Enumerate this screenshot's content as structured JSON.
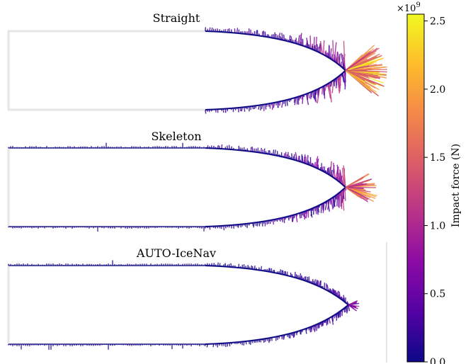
{
  "chart_data": {
    "type": "other",
    "panels": [
      {
        "title": "Straight",
        "max_force": 2.55,
        "bow_factor": 1.0
      },
      {
        "title": "Skeleton",
        "max_force": 2.1,
        "bow_factor": 0.7
      },
      {
        "title": "AUTO-IceNav",
        "max_force": 1.05,
        "bow_factor": 0.35
      }
    ],
    "colorbar": {
      "label": "Impact force (N)",
      "multiplier_base": "×10",
      "multiplier_exp": "9",
      "range": [
        0,
        2.55
      ],
      "colormap": "plasma",
      "ticks": [
        {
          "value": 0.0,
          "label": "0.0"
        },
        {
          "value": 0.5,
          "label": "0.5"
        },
        {
          "value": 1.0,
          "label": "1.0"
        },
        {
          "value": 1.5,
          "label": "1.5"
        },
        {
          "value": 2.0,
          "label": "2.0"
        },
        {
          "value": 2.5,
          "label": "2.5"
        }
      ]
    },
    "colors": {
      "hull_outline": "#e6e6e6",
      "plasma": [
        "#0d0887",
        "#5302a3",
        "#8b0aa5",
        "#b83289",
        "#db5c68",
        "#f48849",
        "#febd2a",
        "#f0f921"
      ]
    }
  }
}
